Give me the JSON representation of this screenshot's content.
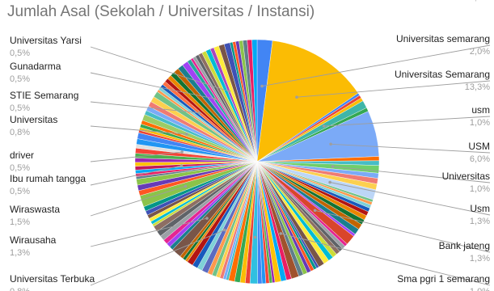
{
  "chart_data": {
    "type": "pie",
    "title": "Jumlah Asal (Sekolah / Universitas / Instansi)",
    "labeled_slices": [
      {
        "name": "Universitas semarang",
        "value": 2.0,
        "pct_label": "2,0%",
        "color": "#4285f4"
      },
      {
        "name": "Universitas Semarang",
        "value": 13.3,
        "pct_label": "13,3%",
        "color": "#fbbc04"
      },
      {
        "name": "usm",
        "value": 1.0,
        "pct_label": "1,0%",
        "color": "#3fb6a8"
      },
      {
        "name": "USM",
        "value": 6.0,
        "pct_label": "6,0%",
        "color": "#7baaf7"
      },
      {
        "name": "Universitas",
        "value": 1.0,
        "pct_label": "1,0%",
        "color": "#6fcf6b"
      },
      {
        "name": "Usm",
        "value": 1.3,
        "pct_label": "1,3%",
        "color": "#bcd6f7"
      },
      {
        "name": "Bank jateng",
        "value": 1.3,
        "pct_label": "1,3%",
        "color": "#d9452b"
      },
      {
        "name": "Sma pgri 1 semarang",
        "value": 1.0,
        "pct_label": "1,0%",
        "color": "#a0522d"
      },
      {
        "name": "Universitas",
        "value": 1.0,
        "pct_label": "1,0%",
        "color": "#30c0e0"
      },
      {
        "name": "Universitas Terbuka",
        "value": 0.8,
        "pct_label": "0,8%",
        "color": "#5c6bc0"
      },
      {
        "name": "Wirausaha",
        "value": 1.3,
        "pct_label": "1,3%",
        "color": "#795548"
      },
      {
        "name": "Wiraswasta",
        "value": 1.5,
        "pct_label": "1,5%",
        "color": "#8bc34a"
      },
      {
        "name": "Ibu rumah tangga",
        "value": 0.5,
        "pct_label": "0,5%",
        "color": "#c2185b"
      },
      {
        "name": "driver",
        "value": 0.5,
        "pct_label": "0,5%",
        "color": "#e0e0e0"
      },
      {
        "name": "Universitas",
        "value": 0.8,
        "pct_label": "0,8%",
        "color": "#9ccc65"
      },
      {
        "name": "STIE Semarang",
        "value": 0.5,
        "pct_label": "0,5%",
        "color": "#ff7043"
      },
      {
        "name": "Gunadarma",
        "value": 0.5,
        "pct_label": "0,5%",
        "color": "#26a69a"
      },
      {
        "name": "Universitas Yarsi",
        "value": 0.5,
        "pct_label": "0,5%",
        "color": "#ab47bc"
      }
    ],
    "other_slices_total": 64.2,
    "other_slices_count": 120,
    "palette": [
      "#4285f4",
      "#ea4335",
      "#fbbc04",
      "#34a853",
      "#ff6d01",
      "#46bdc6",
      "#7baaf7",
      "#f07b72",
      "#fcd04f",
      "#71c287",
      "#ff994d",
      "#7ed1d7",
      "#185abc",
      "#b31412",
      "#ea8600",
      "#137333",
      "#c26401",
      "#1a7f8e",
      "#a142f4",
      "#e52592",
      "#9aa0a6",
      "#5f6368",
      "#8d6e63",
      "#cddc39",
      "#00bcd4",
      "#ffeb3b",
      "#795548",
      "#3f51b5",
      "#009688",
      "#ff5722",
      "#673ab7",
      "#8bc34a",
      "#607d8b",
      "#e91e63",
      "#03a9f4",
      "#ffc107",
      "#9c27b0",
      "#4caf50",
      "#f44336",
      "#2196f3"
    ]
  }
}
